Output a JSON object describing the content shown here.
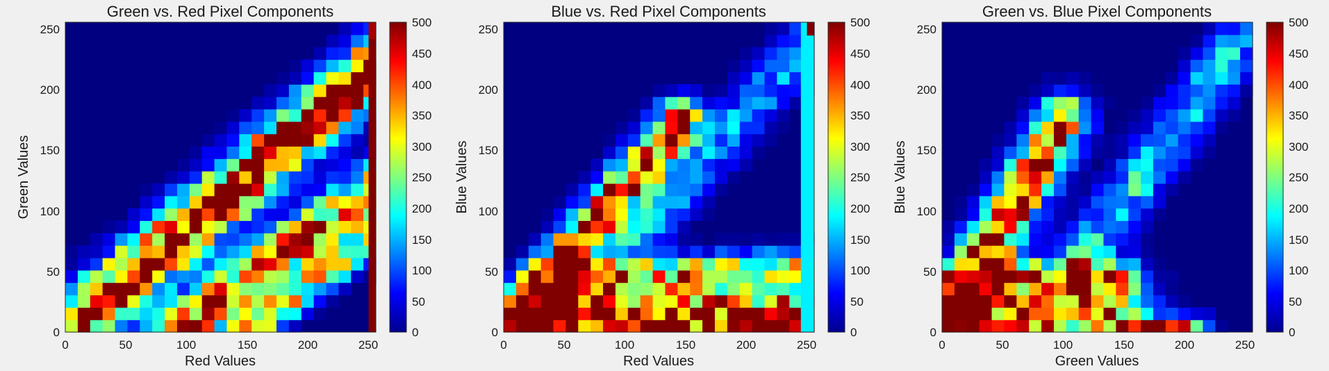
{
  "chart_data": [
    {
      "type": "heatmap",
      "title": "Green vs. Red Pixel Components",
      "xlabel": "Red Values",
      "ylabel": "Green Values",
      "xlim": [
        0,
        256
      ],
      "ylim": [
        0,
        256
      ],
      "xticks": [
        "0",
        "50",
        "100",
        "150",
        "200",
        "250"
      ],
      "yticks": [
        "0",
        "50",
        "100",
        "150",
        "200",
        "250"
      ],
      "bins": 25,
      "colormap": "jet",
      "clim": [
        0,
        500
      ],
      "colorbar_ticks": [
        "0",
        "50",
        "100",
        "150",
        "200",
        "250",
        "300",
        "350",
        "400",
        "450",
        "500"
      ],
      "bands": [
        {
          "x0": 0,
          "y0": 0,
          "x1": 256,
          "y1": 220,
          "width": 16,
          "peak": 520,
          "decay": 0.06
        },
        {
          "x0": 90,
          "y0": 0,
          "x1": 256,
          "y1": 120,
          "width": 14,
          "peak": 480,
          "decay": 0.2
        },
        {
          "x0": 150,
          "y0": 0,
          "x1": 256,
          "y1": 80,
          "width": 9,
          "peak": 300,
          "decay": 0.1
        }
      ],
      "extra_cells": [
        {
          "x": 250,
          "y": 0,
          "w": 6,
          "h": 256,
          "v": 520
        },
        {
          "x": 250,
          "y": 242,
          "w": 6,
          "h": 14,
          "v": 480
        }
      ]
    },
    {
      "type": "heatmap",
      "title": "Blue vs. Red Pixel Components",
      "xlabel": "Red Values",
      "ylabel": "Blue Values",
      "xlim": [
        0,
        256
      ],
      "ylim": [
        0,
        256
      ],
      "xticks": [
        "0",
        "50",
        "100",
        "150",
        "200",
        "250"
      ],
      "yticks": [
        "0",
        "50",
        "100",
        "150",
        "200",
        "250"
      ],
      "bins": 25,
      "colormap": "jet",
      "clim": [
        0,
        500
      ],
      "colorbar_ticks": [
        "0",
        "50",
        "100",
        "150",
        "200",
        "250",
        "300",
        "350",
        "400",
        "450",
        "500"
      ],
      "bands": [
        {
          "x0": 0,
          "y0": 0,
          "x1": 145,
          "y1": 175,
          "width": 12,
          "peak": 520,
          "decay": 0.15
        },
        {
          "x0": 40,
          "y0": 0,
          "x1": 250,
          "y1": 240,
          "width": 14,
          "peak": 160,
          "decay": 0.2
        },
        {
          "x0": 40,
          "y0": 10,
          "x1": 256,
          "y1": 10,
          "width": 20,
          "peak": 520,
          "decay": 0.05
        },
        {
          "x0": 60,
          "y0": 45,
          "x1": 250,
          "y1": 55,
          "width": 9,
          "peak": 300,
          "decay": 0.1
        }
      ],
      "extra_cells": [
        {
          "x": 245,
          "y": 0,
          "w": 11,
          "h": 256,
          "v": 180
        },
        {
          "x": 250,
          "y": 245,
          "w": 6,
          "h": 11,
          "v": 520
        }
      ]
    },
    {
      "type": "heatmap",
      "title": "Green vs. Blue Pixel Components",
      "xlabel": "Green Values",
      "ylabel": "Blue Values",
      "xlim": [
        0,
        256
      ],
      "ylim": [
        0,
        256
      ],
      "xticks": [
        "0",
        "50",
        "100",
        "150",
        "200",
        "250"
      ],
      "yticks": [
        "0",
        "50",
        "100",
        "150",
        "200",
        "250"
      ],
      "bins": 25,
      "colormap": "jet",
      "clim": [
        0,
        500
      ],
      "colorbar_ticks": [
        "0",
        "50",
        "100",
        "150",
        "200",
        "250",
        "300",
        "350",
        "400",
        "450",
        "500"
      ],
      "bands": [
        {
          "x0": 0,
          "y0": 0,
          "x1": 100,
          "y1": 175,
          "width": 14,
          "peak": 520,
          "decay": 0.2
        },
        {
          "x0": 0,
          "y0": 15,
          "x1": 140,
          "y1": 15,
          "width": 22,
          "peak": 420,
          "decay": 0.2
        },
        {
          "x0": 40,
          "y0": 45,
          "x1": 150,
          "y1": 45,
          "width": 9,
          "peak": 280,
          "decay": 0.2
        },
        {
          "x0": 100,
          "y0": 40,
          "x1": 256,
          "y1": 255,
          "width": 14,
          "peak": 180,
          "decay": 0.1
        },
        {
          "x0": 150,
          "y0": 0,
          "x1": 210,
          "y1": 0,
          "width": 8,
          "peak": 520,
          "decay": 0.1
        }
      ],
      "extra_cells": []
    }
  ]
}
